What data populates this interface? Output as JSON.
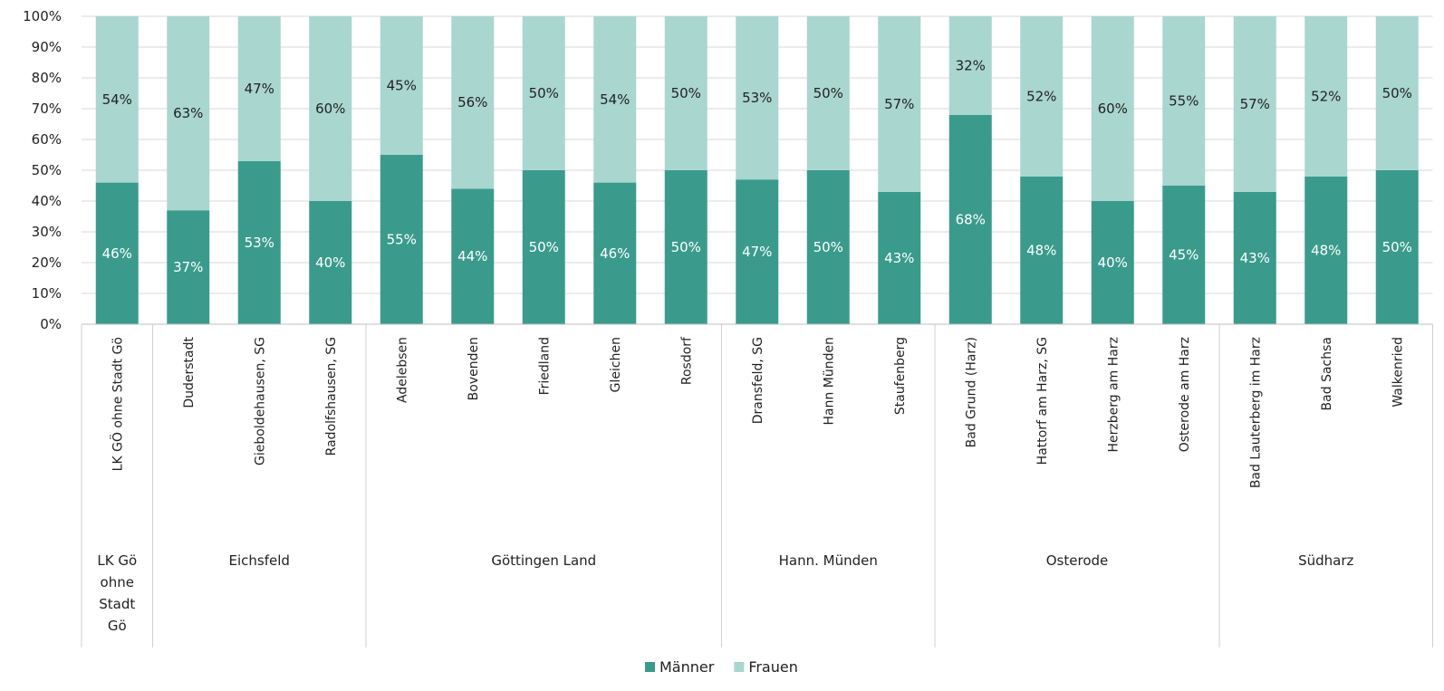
{
  "chart_data": {
    "type": "bar",
    "stacked": true,
    "percent_stacked": true,
    "ylim": [
      0,
      100
    ],
    "yticks": [
      "0%",
      "10%",
      "20%",
      "30%",
      "40%",
      "50%",
      "60%",
      "70%",
      "80%",
      "90%",
      "100%"
    ],
    "categories": [
      "LK GÖ ohne Stadt Gö",
      "Duderstadt",
      "Gieboldehausen, SG",
      "Radolfshausen, SG",
      "Adelebsen",
      "Bovenden",
      "Friedland",
      "Gleichen",
      "Rosdorf",
      "Dransfeld, SG",
      "Hann Münden",
      "Staufenberg",
      "Bad Grund (Harz)",
      "Hattorf am Harz, SG",
      "Herzberg am Harz",
      "Osterode am Harz",
      "Bad Lauterberg im Harz",
      "Bad Sachsa",
      "Walkenried"
    ],
    "groups": [
      {
        "label": [
          "LK Gö",
          "ohne",
          "Stadt",
          "Gö"
        ],
        "start": 0,
        "count": 1
      },
      {
        "label": [
          "Eichsfeld"
        ],
        "start": 1,
        "count": 3
      },
      {
        "label": [
          "Göttingen Land"
        ],
        "start": 4,
        "count": 5
      },
      {
        "label": [
          "Hann. Münden"
        ],
        "start": 9,
        "count": 3
      },
      {
        "label": [
          "Osterode"
        ],
        "start": 12,
        "count": 4
      },
      {
        "label": [
          "Südharz"
        ],
        "start": 16,
        "count": 3
      }
    ],
    "series": [
      {
        "name": "Männer",
        "color": "#3a9b8c",
        "values": [
          46,
          37,
          53,
          40,
          55,
          44,
          50,
          46,
          50,
          47,
          50,
          43,
          68,
          48,
          40,
          45,
          43,
          48,
          50
        ],
        "labels": [
          "46%",
          "37%",
          "53%",
          "40%",
          "55%",
          "44%",
          "50%",
          "46%",
          "50%",
          "47%",
          "50%",
          "43%",
          "68%",
          "48%",
          "40%",
          "45%",
          "43%",
          "48%",
          "50%"
        ]
      },
      {
        "name": "Frauen",
        "color": "#a9d6cf",
        "values": [
          54,
          63,
          47,
          60,
          45,
          56,
          50,
          54,
          50,
          53,
          50,
          57,
          32,
          52,
          60,
          55,
          57,
          52,
          50
        ],
        "labels": [
          "54%",
          "63%",
          "47%",
          "60%",
          "45%",
          "56%",
          "50%",
          "54%",
          "50%",
          "53%",
          "50%",
          "57%",
          "32%",
          "52%",
          "60%",
          "55%",
          "57%",
          "52%",
          "50%"
        ]
      }
    ],
    "legend": {
      "placement": "bottom-center"
    },
    "grid": true
  }
}
